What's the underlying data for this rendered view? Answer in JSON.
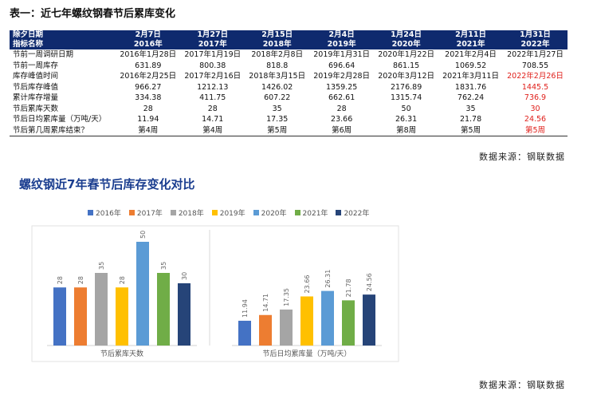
{
  "table_title": "表一：近七年螺纹钢春节后累库变化",
  "table": {
    "corner_top": "除夕日期",
    "corner_bottom": "指标名称",
    "columns": [
      {
        "date": "2月7日",
        "year": "2016年"
      },
      {
        "date": "1月27日",
        "year": "2017年"
      },
      {
        "date": "2月15日",
        "year": "2018年"
      },
      {
        "date": "2月4日",
        "year": "2019年"
      },
      {
        "date": "1月24日",
        "year": "2020年"
      },
      {
        "date": "2月11日",
        "year": "2021年"
      },
      {
        "date": "1月31日",
        "year": "2022年"
      }
    ],
    "rows": [
      {
        "label": "节前一周调研日期",
        "values": [
          "2016年1月28日",
          "2017年1月19日",
          "2018年2月8日",
          "2019年1月31日",
          "2020年1月22日",
          "2021年2月4日",
          "2022年1月27日"
        ]
      },
      {
        "label": "节前一周库存",
        "values": [
          "631.89",
          "800.38",
          "818.8",
          "696.64",
          "861.15",
          "1069.52",
          "708.55"
        ]
      },
      {
        "label": "库存峰值时间",
        "values": [
          "2016年2月25日",
          "2017年2月16日",
          "2018年3月15日",
          "2019年2月28日",
          "2020年3月12日",
          "2021年3月11日",
          "2022年2月26日"
        ]
      },
      {
        "label": "节后库存峰值",
        "values": [
          "966.27",
          "1212.13",
          "1426.02",
          "1359.25",
          "2176.89",
          "1831.76",
          "1445.5"
        ]
      },
      {
        "label": "累计库存增量",
        "values": [
          "334.38",
          "411.75",
          "607.22",
          "662.61",
          "1315.74",
          "762.24",
          "736.9"
        ]
      },
      {
        "label": "节后累库天数",
        "values": [
          "28",
          "28",
          "35",
          "28",
          "50",
          "35",
          "30"
        ]
      },
      {
        "label": "节后日均累库量（万吨/天）",
        "values": [
          "11.94",
          "14.71",
          "17.35",
          "23.66",
          "26.31",
          "21.78",
          "24.56"
        ]
      },
      {
        "label": "节后第几周累库结束？",
        "values": [
          "第4周",
          "第4周",
          "第5周",
          "第6周",
          "第8周",
          "第5周",
          "第5周"
        ]
      }
    ],
    "red_rows_last_col": [
      2,
      3,
      4,
      5,
      6,
      7
    ]
  },
  "source_label": "数据来源：钢联数据",
  "chart_title": "螺纹钢近7年春节后库存变化对比",
  "colors": {
    "2016年": "#4472c4",
    "2017年": "#ed7d31",
    "2018年": "#a5a5a5",
    "2019年": "#ffc000",
    "2020年": "#5b9bd5",
    "2021年": "#70ad47",
    "2022年": "#264478"
  },
  "chart_data": [
    {
      "type": "bar",
      "title": "",
      "xlabel": "节后累库天数",
      "ylabel": "",
      "categories": [
        "2016年",
        "2017年",
        "2018年",
        "2019年",
        "2020年",
        "2021年",
        "2022年"
      ],
      "values": [
        28,
        28,
        35,
        28,
        50,
        35,
        30
      ],
      "ylim": [
        0,
        55
      ],
      "grid": false,
      "legend": "top"
    },
    {
      "type": "bar",
      "title": "",
      "xlabel": "节后日均累库量（万吨/天）",
      "ylabel": "",
      "categories": [
        "2016年",
        "2017年",
        "2018年",
        "2019年",
        "2020年",
        "2021年",
        "2022年"
      ],
      "values": [
        11.94,
        14.71,
        17.35,
        23.66,
        26.31,
        21.78,
        24.56
      ],
      "ylim": [
        0,
        55
      ],
      "grid": false,
      "legend": "top"
    }
  ]
}
